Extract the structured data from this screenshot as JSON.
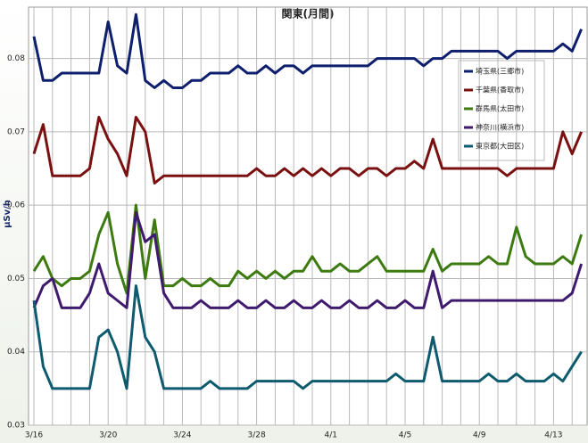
{
  "chart_data": {
    "type": "line",
    "title": "関東(月間)",
    "y_label": "μSv/h",
    "categories": [
      "3/16",
      null,
      null,
      null,
      null,
      null,
      null,
      null,
      "3/20",
      null,
      null,
      null,
      null,
      null,
      null,
      null,
      "3/24",
      null,
      null,
      null,
      null,
      null,
      null,
      null,
      "3/28",
      null,
      null,
      null,
      null,
      null,
      null,
      null,
      "4/1",
      null,
      null,
      null,
      null,
      null,
      null,
      null,
      "4/5",
      null,
      null,
      null,
      null,
      null,
      null,
      null,
      "4/9",
      null,
      null,
      null,
      null,
      null,
      null,
      null,
      "4/13",
      null,
      null,
      null
    ],
    "ylim": [
      0.03,
      0.087
    ],
    "yticks": [
      0.03,
      0.04,
      0.05,
      0.06,
      0.07,
      0.08
    ],
    "grid": true,
    "legend": "upper-right",
    "series": [
      {
        "name": "埼玉県(三郷市)",
        "color": "#0e1f6e",
        "values": [
          0.083,
          0.077,
          0.077,
          0.078,
          0.078,
          0.078,
          0.078,
          0.078,
          0.085,
          0.079,
          0.078,
          0.086,
          0.077,
          0.076,
          0.077,
          0.076,
          0.076,
          0.077,
          0.077,
          0.078,
          0.078,
          0.078,
          0.079,
          0.078,
          0.078,
          0.079,
          0.078,
          0.079,
          0.079,
          0.078,
          0.079,
          0.079,
          0.079,
          0.079,
          0.079,
          0.079,
          0.079,
          0.08,
          0.08,
          0.08,
          0.08,
          0.08,
          0.079,
          0.08,
          0.08,
          0.081,
          0.081,
          0.081,
          0.081,
          0.081,
          0.081,
          0.08,
          0.081,
          0.081,
          0.081,
          0.081,
          0.081,
          0.082,
          0.081,
          0.084
        ]
      },
      {
        "name": "千葉県(香取市)",
        "color": "#7b1010",
        "values": [
          0.067,
          0.071,
          0.064,
          0.064,
          0.064,
          0.064,
          0.065,
          0.072,
          0.069,
          0.067,
          0.064,
          0.072,
          0.07,
          0.063,
          0.064,
          0.064,
          0.064,
          0.064,
          0.064,
          0.064,
          0.064,
          0.064,
          0.064,
          0.064,
          0.065,
          0.064,
          0.064,
          0.065,
          0.064,
          0.065,
          0.064,
          0.065,
          0.064,
          0.065,
          0.065,
          0.064,
          0.065,
          0.065,
          0.064,
          0.065,
          0.065,
          0.066,
          0.065,
          0.069,
          0.065,
          0.065,
          0.065,
          0.065,
          0.065,
          0.065,
          0.065,
          0.064,
          0.065,
          0.065,
          0.065,
          0.065,
          0.065,
          0.07,
          0.067,
          0.07
        ]
      },
      {
        "name": "群馬県(太田市)",
        "color": "#3d7a10",
        "values": [
          0.051,
          0.053,
          0.05,
          0.049,
          0.05,
          0.05,
          0.051,
          0.056,
          0.059,
          0.052,
          0.048,
          0.06,
          0.05,
          0.058,
          0.049,
          0.049,
          0.05,
          0.049,
          0.049,
          0.05,
          0.049,
          0.049,
          0.051,
          0.05,
          0.051,
          0.05,
          0.051,
          0.05,
          0.051,
          0.051,
          0.053,
          0.051,
          0.051,
          0.052,
          0.051,
          0.051,
          0.052,
          0.053,
          0.051,
          0.051,
          0.051,
          0.051,
          0.051,
          0.054,
          0.051,
          0.052,
          0.052,
          0.052,
          0.052,
          0.053,
          0.052,
          0.052,
          0.057,
          0.053,
          0.052,
          0.052,
          0.052,
          0.053,
          0.052,
          0.056
        ]
      },
      {
        "name": "神奈川(横浜市)",
        "color": "#3f1a6e",
        "values": [
          0.046,
          0.049,
          0.05,
          0.046,
          0.046,
          0.046,
          0.048,
          0.052,
          0.048,
          0.047,
          0.046,
          0.059,
          0.055,
          0.056,
          0.048,
          0.046,
          0.046,
          0.046,
          0.047,
          0.046,
          0.046,
          0.046,
          0.047,
          0.046,
          0.046,
          0.047,
          0.046,
          0.046,
          0.047,
          0.046,
          0.046,
          0.047,
          0.046,
          0.046,
          0.047,
          0.046,
          0.046,
          0.047,
          0.046,
          0.046,
          0.047,
          0.046,
          0.046,
          0.051,
          0.046,
          0.047,
          0.047,
          0.047,
          0.047,
          0.047,
          0.047,
          0.047,
          0.047,
          0.047,
          0.047,
          0.047,
          0.047,
          0.047,
          0.048,
          0.052
        ]
      },
      {
        "name": "東京都(大田区)",
        "color": "#0e5a6e",
        "values": [
          0.047,
          0.038,
          0.035,
          0.035,
          0.035,
          0.035,
          0.035,
          0.042,
          0.043,
          0.04,
          0.035,
          0.049,
          0.042,
          0.04,
          0.035,
          0.035,
          0.035,
          0.035,
          0.035,
          0.036,
          0.035,
          0.035,
          0.035,
          0.035,
          0.036,
          0.036,
          0.036,
          0.036,
          0.036,
          0.035,
          0.036,
          0.036,
          0.036,
          0.036,
          0.036,
          0.036,
          0.036,
          0.036,
          0.036,
          0.037,
          0.036,
          0.036,
          0.036,
          0.042,
          0.036,
          0.036,
          0.036,
          0.036,
          0.036,
          0.037,
          0.036,
          0.036,
          0.037,
          0.036,
          0.036,
          0.036,
          0.037,
          0.036,
          0.038,
          0.04
        ]
      }
    ]
  }
}
